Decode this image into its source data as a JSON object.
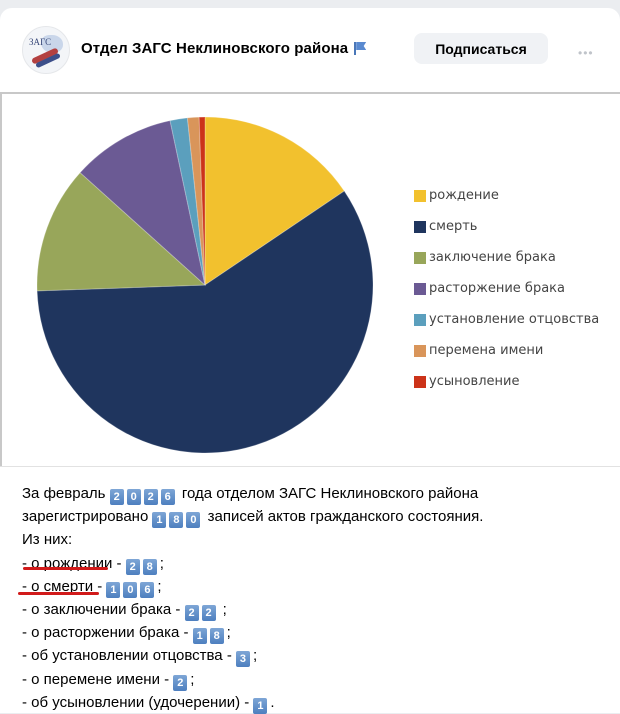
{
  "header": {
    "title": "Отдел ЗАГС Неклиновского района",
    "avatar_text": "ЗАГС",
    "subscribe_label": "Подписаться",
    "more_label": "•••",
    "flag_icon": "flag-icon"
  },
  "chart_data": {
    "type": "pie",
    "title": "",
    "categories": [
      "рождение",
      "смерть",
      "заключение брака",
      "расторжение брака",
      "установление отцовства",
      "перемена имени",
      "усыновление"
    ],
    "values": [
      28,
      106,
      22,
      18,
      3,
      2,
      1
    ],
    "colors": [
      "#f2c12e",
      "#1f355e",
      "#98a65a",
      "#6b5a94",
      "#5b9fbd",
      "#d9955a",
      "#cc3319"
    ],
    "legend_position": "right",
    "start_angle": "top, clockwise"
  },
  "legend": [
    {
      "label": "рождение",
      "color": "#f2c12e"
    },
    {
      "label": "смерть",
      "color": "#1f355e"
    },
    {
      "label": "заключение брака",
      "color": "#98a65a"
    },
    {
      "label": "расторжение брака",
      "color": "#6b5a94"
    },
    {
      "label": "установление отцовства",
      "color": "#5b9fbd"
    },
    {
      "label": "перемена имени",
      "color": "#d9955a"
    },
    {
      "label": "усыновление",
      "color": "#cc3319"
    }
  ],
  "post": {
    "line1_pre": "За февраль ",
    "year_digits": [
      "2",
      "0",
      "2",
      "6"
    ],
    "line1_post": "года отделом ЗАГС Неклиновского района",
    "line2_pre": "зарегистрировано ",
    "total_digits": [
      "1",
      "8",
      "0"
    ],
    "line2_post": "записей актов гражданского состояния.",
    "line3": "Из них:",
    "items": [
      {
        "label": "- о рождении - ",
        "digits": [
          "2",
          "8"
        ],
        "end": ";"
      },
      {
        "label": "- о смерти - ",
        "digits": [
          "1",
          "0",
          "6"
        ],
        "end": ";"
      },
      {
        "label": "- о заключении брака - ",
        "digits": [
          "2",
          "2"
        ],
        "end": " ;"
      },
      {
        "label": "- о расторжении брака - ",
        "digits": [
          "1",
          "8"
        ],
        "end": ";"
      },
      {
        "label": "- об установлении отцовства - ",
        "digits": [
          "3"
        ],
        "end": ";"
      },
      {
        "label": "- о перемене имени - ",
        "digits": [
          "2"
        ],
        "end": ";"
      },
      {
        "label": "- об усыновлении (удочерении) - ",
        "digits": [
          "1"
        ],
        "end": "."
      }
    ]
  }
}
